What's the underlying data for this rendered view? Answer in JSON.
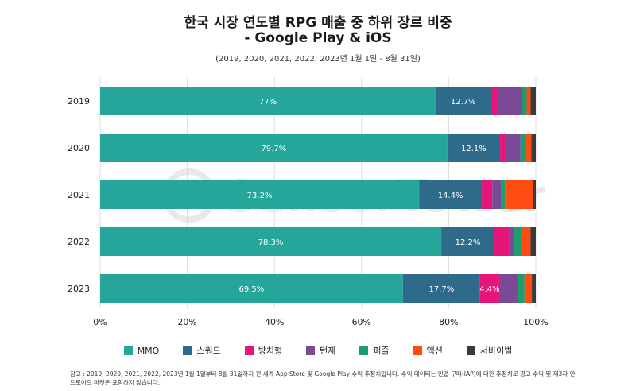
{
  "header": {
    "title_line1": "한국 시장 연도별 RPG 매출 중 하위 장르 비중",
    "title_line2": "- Google Play & iOS",
    "subtitle": "(2019, 2020, 2021, 2022, 2023년 1월 1일 - 8월 31일)"
  },
  "watermark": "SensorTower",
  "footnote": "참고 : 2019, 2020, 2021, 2022, 2023년 1월 1일부터 8월 31일까지 전 세계 App Store 및 Google Play 수익 추정치입니다. 수익 데이터는 인앱 구매(IAP)에 대한 추정치로 광고 수익 및 제3자 안드로이드 마켓은 포함하지 않습니다.",
  "colors": {
    "MMO": "#26a69a",
    "스쿼드": "#2e6b8a",
    "방치형": "#e6157a",
    "턴제": "#7b4a96",
    "퍼즐": "#1a9e6e",
    "액션": "#ff4d12",
    "서바이벌": "#3a3a3a",
    "grid": "#dddddd"
  },
  "chart_data": {
    "type": "bar",
    "orientation": "horizontal",
    "stacked": true,
    "categories": [
      "2019",
      "2020",
      "2021",
      "2022",
      "2023"
    ],
    "series": [
      {
        "name": "MMO",
        "values": [
          77,
          79.7,
          73.2,
          78.3,
          69.5
        ]
      },
      {
        "name": "스쿼드",
        "values": [
          12.7,
          12.1,
          14.4,
          12.2,
          17.7
        ]
      },
      {
        "name": "방치형",
        "values": [
          1.7,
          1.4,
          2.4,
          3.4,
          4.4
        ]
      },
      {
        "name": "턴제",
        "values": [
          5.4,
          3.3,
          2.1,
          1.1,
          4.2
        ]
      },
      {
        "name": "퍼즐",
        "values": [
          1.1,
          1.3,
          0.9,
          1.7,
          1.6
        ]
      },
      {
        "name": "액션",
        "values": [
          0.9,
          1.2,
          6.3,
          2.1,
          1.7
        ]
      },
      {
        "name": "서바이벌",
        "values": [
          1.2,
          1.0,
          0.7,
          1.2,
          0.9
        ]
      }
    ],
    "data_labels": [
      [
        "77%",
        "12.7%",
        "",
        "",
        "",
        "",
        ""
      ],
      [
        "79.7%",
        "12.1%",
        "",
        "",
        "",
        "",
        ""
      ],
      [
        "73.2%",
        "14.4%",
        "",
        "",
        "",
        "",
        ""
      ],
      [
        "78.3%",
        "12.2%",
        "",
        "",
        "",
        "",
        ""
      ],
      [
        "69.5%",
        "17.7%",
        "4.4%",
        "",
        "",
        "",
        ""
      ]
    ],
    "xlim": [
      0,
      100
    ],
    "xticks": [
      "0%",
      "20%",
      "40%",
      "60%",
      "80%",
      "100%"
    ],
    "grid": true,
    "legend_position": "bottom"
  }
}
